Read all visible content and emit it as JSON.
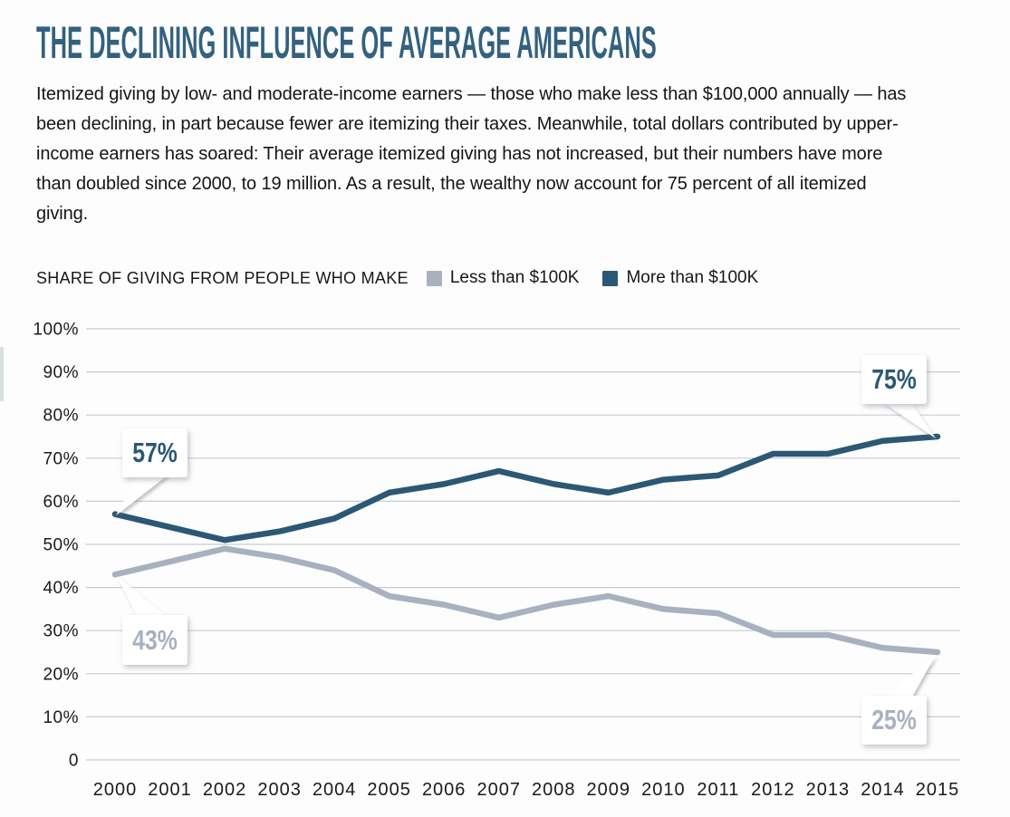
{
  "header": {
    "title": "THE DECLINING INFLUENCE OF AVERAGE AMERICANS",
    "intro": "Itemized giving by low- and moderate-income earners — those who make less than $100,000 annually — has been declining, in part because fewer are itemizing their taxes. Meanwhile, total dollars contributed by upper-income earners has soared: Their average itemized giving has not increased, but their numbers have more than doubled since 2000, to 19 million. As a result, the wealthy now account for 75 percent of all itemized giving."
  },
  "legend": {
    "label": "SHARE OF GIVING FROM PEOPLE WHO MAKE",
    "items": [
      {
        "label": "Less than $100K",
        "color": "#a7b1c0"
      },
      {
        "label": "More than $100K",
        "color": "#2b5874"
      }
    ]
  },
  "chart_data": {
    "type": "line",
    "x": [
      2000,
      2001,
      2002,
      2003,
      2004,
      2005,
      2006,
      2007,
      2008,
      2009,
      2010,
      2011,
      2012,
      2013,
      2014,
      2015
    ],
    "series": [
      {
        "name": "Less than $100K",
        "color": "#a7b1c0",
        "values": [
          43,
          46,
          49,
          47,
          44,
          38,
          36,
          33,
          36,
          38,
          35,
          34,
          29,
          29,
          26,
          25
        ]
      },
      {
        "name": "More than $100K",
        "color": "#2b5874",
        "values": [
          57,
          54,
          51,
          53,
          56,
          62,
          64,
          67,
          64,
          62,
          65,
          66,
          71,
          71,
          74,
          75
        ]
      }
    ],
    "title": "SHARE OF GIVING FROM PEOPLE WHO MAKE",
    "xlabel": "",
    "ylabel": "",
    "ylim": [
      0,
      100
    ],
    "ytick_labels": [
      "0",
      "10%",
      "20%",
      "30%",
      "40%",
      "50%",
      "60%",
      "70%",
      "80%",
      "90%",
      "100%"
    ],
    "grid": true,
    "legend_position": "top",
    "annotations": [
      {
        "text": "57%",
        "series": "More than $100K",
        "x": 2000,
        "value": 57
      },
      {
        "text": "43%",
        "series": "Less than $100K",
        "x": 2000,
        "value": 43
      },
      {
        "text": "75%",
        "series": "More than $100K",
        "x": 2015,
        "value": 75
      },
      {
        "text": "25%",
        "series": "Less than $100K",
        "x": 2015,
        "value": 25
      }
    ]
  },
  "colors": {
    "title": "#33617f",
    "grid": "#c8ccd1",
    "axis_text": "#1a1a1c",
    "background": "#fdfdfd"
  }
}
